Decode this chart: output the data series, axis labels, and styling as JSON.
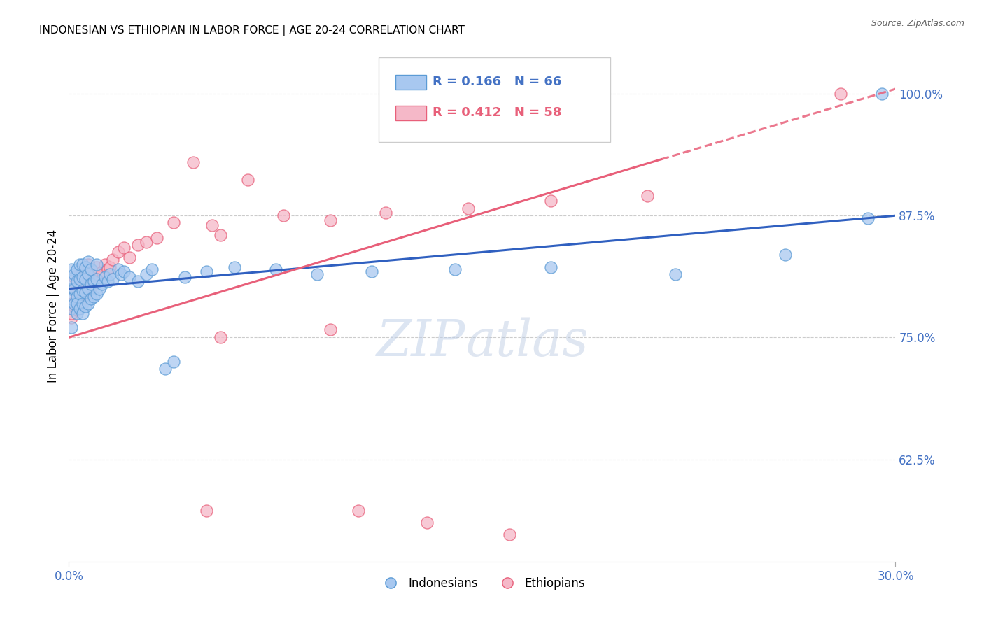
{
  "title": "INDONESIAN VS ETHIOPIAN IN LABOR FORCE | AGE 20-24 CORRELATION CHART",
  "source": "Source: ZipAtlas.com",
  "ylabel": "In Labor Force | Age 20-24",
  "x_min": 0.0,
  "x_max": 0.3,
  "y_min": 0.52,
  "y_max": 1.045,
  "yticks": [
    0.625,
    0.75,
    0.875,
    1.0
  ],
  "ytick_labels": [
    "62.5%",
    "75.0%",
    "87.5%",
    "100.0%"
  ],
  "indonesian_color": "#A8C8F0",
  "ethiopian_color": "#F5B8C8",
  "indonesian_edge": "#5B9BD5",
  "ethiopian_edge": "#E8607A",
  "trend_blue": "#3060C0",
  "trend_pink": "#E8607A",
  "legend_r_indo": "R = 0.166",
  "legend_n_indo": "N = 66",
  "legend_r_ethi": "R = 0.412",
  "legend_n_ethi": "N = 58",
  "watermark_zip": "ZIP",
  "watermark_atlas": "atlas",
  "indo_trend_y0": 0.8,
  "indo_trend_y1": 0.875,
  "ethi_trend_y0": 0.75,
  "ethi_trend_y1": 1.005,
  "indonesian_scatter_x": [
    0.001,
    0.001,
    0.001,
    0.001,
    0.001,
    0.001,
    0.002,
    0.002,
    0.002,
    0.003,
    0.003,
    0.003,
    0.003,
    0.003,
    0.004,
    0.004,
    0.004,
    0.004,
    0.005,
    0.005,
    0.005,
    0.005,
    0.005,
    0.006,
    0.006,
    0.006,
    0.006,
    0.007,
    0.007,
    0.007,
    0.007,
    0.008,
    0.008,
    0.008,
    0.009,
    0.009,
    0.01,
    0.01,
    0.01,
    0.011,
    0.012,
    0.013,
    0.014,
    0.015,
    0.016,
    0.018,
    0.019,
    0.02,
    0.022,
    0.025,
    0.028,
    0.03,
    0.035,
    0.038,
    0.042,
    0.05,
    0.06,
    0.075,
    0.09,
    0.11,
    0.14,
    0.175,
    0.22,
    0.26,
    0.29,
    0.295
  ],
  "indonesian_scatter_y": [
    0.78,
    0.8,
    0.82,
    0.76,
    0.79,
    0.81,
    0.785,
    0.8,
    0.815,
    0.775,
    0.792,
    0.808,
    0.82,
    0.785,
    0.78,
    0.795,
    0.81,
    0.825,
    0.785,
    0.798,
    0.812,
    0.825,
    0.775,
    0.782,
    0.796,
    0.81,
    0.822,
    0.785,
    0.8,
    0.815,
    0.828,
    0.79,
    0.805,
    0.82,
    0.792,
    0.808,
    0.795,
    0.81,
    0.825,
    0.8,
    0.805,
    0.812,
    0.808,
    0.815,
    0.81,
    0.82,
    0.815,
    0.818,
    0.812,
    0.808,
    0.815,
    0.82,
    0.718,
    0.725,
    0.812,
    0.818,
    0.822,
    0.82,
    0.815,
    0.818,
    0.82,
    0.822,
    0.815,
    0.835,
    0.872,
    1.0
  ],
  "ethiopian_scatter_x": [
    0.001,
    0.001,
    0.001,
    0.001,
    0.002,
    0.002,
    0.002,
    0.003,
    0.003,
    0.003,
    0.004,
    0.004,
    0.004,
    0.005,
    0.005,
    0.005,
    0.006,
    0.006,
    0.006,
    0.007,
    0.007,
    0.007,
    0.008,
    0.008,
    0.009,
    0.009,
    0.01,
    0.01,
    0.011,
    0.012,
    0.013,
    0.014,
    0.015,
    0.016,
    0.018,
    0.02,
    0.022,
    0.025,
    0.028,
    0.032,
    0.038,
    0.045,
    0.055,
    0.065,
    0.078,
    0.052,
    0.095,
    0.115,
    0.145,
    0.175,
    0.21,
    0.05,
    0.105,
    0.13,
    0.16,
    0.055,
    0.095,
    0.28
  ],
  "ethiopian_scatter_y": [
    0.77,
    0.785,
    0.8,
    0.775,
    0.782,
    0.798,
    0.812,
    0.79,
    0.805,
    0.778,
    0.785,
    0.8,
    0.815,
    0.792,
    0.806,
    0.82,
    0.795,
    0.808,
    0.822,
    0.798,
    0.812,
    0.825,
    0.802,
    0.815,
    0.805,
    0.818,
    0.808,
    0.822,
    0.812,
    0.818,
    0.825,
    0.82,
    0.822,
    0.83,
    0.838,
    0.842,
    0.832,
    0.845,
    0.848,
    0.852,
    0.868,
    0.93,
    0.855,
    0.912,
    0.875,
    0.865,
    0.87,
    0.878,
    0.882,
    0.89,
    0.895,
    0.572,
    0.572,
    0.56,
    0.548,
    0.75,
    0.758,
    1.0
  ]
}
